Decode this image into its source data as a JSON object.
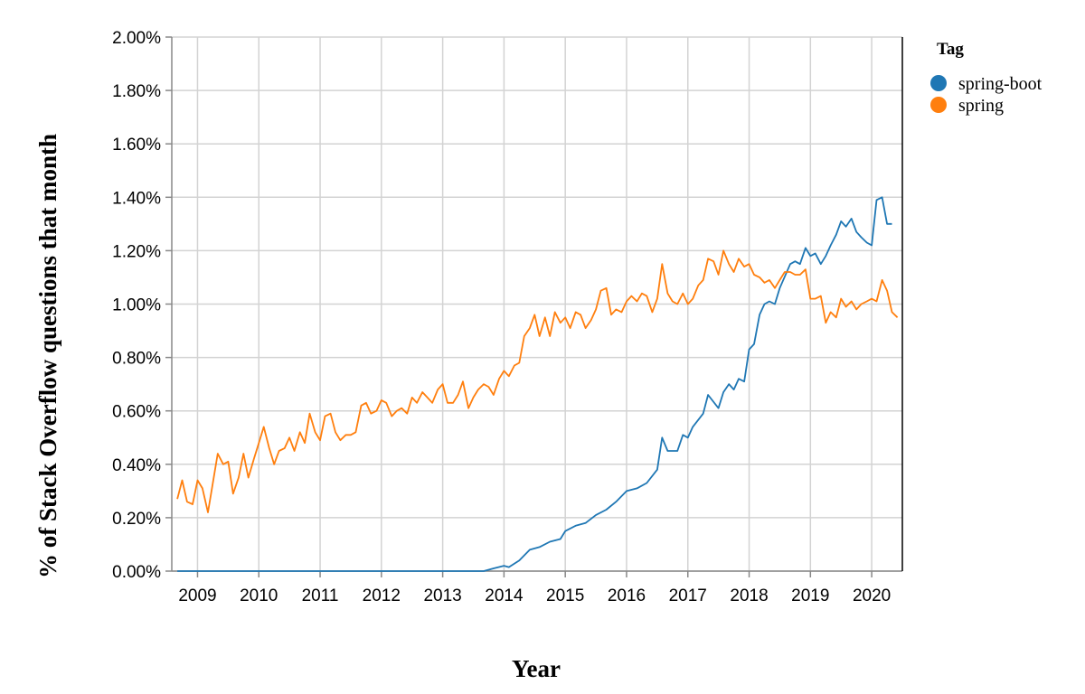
{
  "chart_data": {
    "type": "line",
    "xlabel": "Year",
    "ylabel": "% of Stack Overflow questions that month",
    "xlim": [
      2008.58,
      2020.5
    ],
    "ylim": [
      0,
      2.0
    ],
    "y_ticks": [
      "0.00%",
      "0.20%",
      "0.40%",
      "0.60%",
      "0.80%",
      "1.00%",
      "1.20%",
      "1.40%",
      "1.60%",
      "1.80%",
      "2.00%"
    ],
    "x_ticks": [
      "2009",
      "2010",
      "2011",
      "2012",
      "2013",
      "2014",
      "2015",
      "2016",
      "2017",
      "2018",
      "2019",
      "2020"
    ],
    "grid": true,
    "legend": {
      "title": "Tag",
      "placement": "top-right",
      "entries": [
        "spring-boot",
        "spring"
      ]
    },
    "series": [
      {
        "name": "spring-boot",
        "color": "#1f77b4",
        "points": [
          [
            2008.67,
            0.0
          ],
          [
            2009.0,
            0.0
          ],
          [
            2010.0,
            0.0
          ],
          [
            2011.0,
            0.0
          ],
          [
            2012.0,
            0.0
          ],
          [
            2013.0,
            0.0
          ],
          [
            2013.5,
            0.0
          ],
          [
            2013.67,
            0.0
          ],
          [
            2013.83,
            0.01
          ],
          [
            2014.0,
            0.02
          ],
          [
            2014.08,
            0.015
          ],
          [
            2014.25,
            0.04
          ],
          [
            2014.42,
            0.08
          ],
          [
            2014.58,
            0.09
          ],
          [
            2014.75,
            0.11
          ],
          [
            2014.92,
            0.12
          ],
          [
            2015.0,
            0.15
          ],
          [
            2015.17,
            0.17
          ],
          [
            2015.33,
            0.18
          ],
          [
            2015.5,
            0.21
          ],
          [
            2015.67,
            0.23
          ],
          [
            2015.83,
            0.26
          ],
          [
            2016.0,
            0.3
          ],
          [
            2016.17,
            0.31
          ],
          [
            2016.33,
            0.33
          ],
          [
            2016.5,
            0.38
          ],
          [
            2016.58,
            0.5
          ],
          [
            2016.67,
            0.45
          ],
          [
            2016.83,
            0.45
          ],
          [
            2016.92,
            0.51
          ],
          [
            2017.0,
            0.5
          ],
          [
            2017.08,
            0.54
          ],
          [
            2017.25,
            0.59
          ],
          [
            2017.33,
            0.66
          ],
          [
            2017.5,
            0.61
          ],
          [
            2017.58,
            0.67
          ],
          [
            2017.67,
            0.7
          ],
          [
            2017.75,
            0.68
          ],
          [
            2017.83,
            0.72
          ],
          [
            2017.92,
            0.71
          ],
          [
            2018.0,
            0.83
          ],
          [
            2018.08,
            0.85
          ],
          [
            2018.17,
            0.96
          ],
          [
            2018.25,
            1.0
          ],
          [
            2018.33,
            1.01
          ],
          [
            2018.42,
            1.0
          ],
          [
            2018.5,
            1.06
          ],
          [
            2018.67,
            1.15
          ],
          [
            2018.75,
            1.16
          ],
          [
            2018.83,
            1.15
          ],
          [
            2018.92,
            1.21
          ],
          [
            2019.0,
            1.18
          ],
          [
            2019.08,
            1.19
          ],
          [
            2019.17,
            1.15
          ],
          [
            2019.25,
            1.18
          ],
          [
            2019.33,
            1.22
          ],
          [
            2019.42,
            1.26
          ],
          [
            2019.5,
            1.31
          ],
          [
            2019.58,
            1.29
          ],
          [
            2019.67,
            1.32
          ],
          [
            2019.75,
            1.27
          ],
          [
            2019.83,
            1.25
          ],
          [
            2019.92,
            1.23
          ],
          [
            2020.0,
            1.22
          ],
          [
            2020.08,
            1.39
          ],
          [
            2020.17,
            1.4
          ],
          [
            2020.25,
            1.3
          ],
          [
            2020.33,
            1.3
          ]
        ]
      },
      {
        "name": "spring",
        "color": "#ff7f0e",
        "points": [
          [
            2008.67,
            0.27
          ],
          [
            2008.75,
            0.34
          ],
          [
            2008.83,
            0.26
          ],
          [
            2008.92,
            0.25
          ],
          [
            2009.0,
            0.34
          ],
          [
            2009.08,
            0.31
          ],
          [
            2009.17,
            0.22
          ],
          [
            2009.25,
            0.33
          ],
          [
            2009.33,
            0.44
          ],
          [
            2009.42,
            0.4
          ],
          [
            2009.5,
            0.41
          ],
          [
            2009.58,
            0.29
          ],
          [
            2009.67,
            0.35
          ],
          [
            2009.75,
            0.44
          ],
          [
            2009.83,
            0.35
          ],
          [
            2009.92,
            0.42
          ],
          [
            2010.0,
            0.48
          ],
          [
            2010.08,
            0.54
          ],
          [
            2010.17,
            0.46
          ],
          [
            2010.25,
            0.4
          ],
          [
            2010.33,
            0.45
          ],
          [
            2010.42,
            0.46
          ],
          [
            2010.5,
            0.5
          ],
          [
            2010.58,
            0.45
          ],
          [
            2010.67,
            0.52
          ],
          [
            2010.75,
            0.48
          ],
          [
            2010.83,
            0.59
          ],
          [
            2010.92,
            0.52
          ],
          [
            2011.0,
            0.49
          ],
          [
            2011.08,
            0.58
          ],
          [
            2011.17,
            0.59
          ],
          [
            2011.25,
            0.52
          ],
          [
            2011.33,
            0.49
          ],
          [
            2011.42,
            0.51
          ],
          [
            2011.5,
            0.51
          ],
          [
            2011.58,
            0.52
          ],
          [
            2011.67,
            0.62
          ],
          [
            2011.75,
            0.63
          ],
          [
            2011.83,
            0.59
          ],
          [
            2011.92,
            0.6
          ],
          [
            2012.0,
            0.64
          ],
          [
            2012.08,
            0.63
          ],
          [
            2012.17,
            0.58
          ],
          [
            2012.25,
            0.6
          ],
          [
            2012.33,
            0.61
          ],
          [
            2012.42,
            0.59
          ],
          [
            2012.5,
            0.65
          ],
          [
            2012.58,
            0.63
          ],
          [
            2012.67,
            0.67
          ],
          [
            2012.75,
            0.65
          ],
          [
            2012.83,
            0.63
          ],
          [
            2012.92,
            0.68
          ],
          [
            2013.0,
            0.7
          ],
          [
            2013.08,
            0.63
          ],
          [
            2013.17,
            0.63
          ],
          [
            2013.25,
            0.66
          ],
          [
            2013.33,
            0.71
          ],
          [
            2013.42,
            0.61
          ],
          [
            2013.5,
            0.65
          ],
          [
            2013.58,
            0.68
          ],
          [
            2013.67,
            0.7
          ],
          [
            2013.75,
            0.69
          ],
          [
            2013.83,
            0.66
          ],
          [
            2013.92,
            0.72
          ],
          [
            2014.0,
            0.75
          ],
          [
            2014.08,
            0.73
          ],
          [
            2014.17,
            0.77
          ],
          [
            2014.25,
            0.78
          ],
          [
            2014.33,
            0.88
          ],
          [
            2014.42,
            0.91
          ],
          [
            2014.5,
            0.96
          ],
          [
            2014.58,
            0.88
          ],
          [
            2014.67,
            0.95
          ],
          [
            2014.75,
            0.88
          ],
          [
            2014.83,
            0.97
          ],
          [
            2014.92,
            0.93
          ],
          [
            2015.0,
            0.95
          ],
          [
            2015.08,
            0.91
          ],
          [
            2015.17,
            0.97
          ],
          [
            2015.25,
            0.96
          ],
          [
            2015.33,
            0.91
          ],
          [
            2015.42,
            0.94
          ],
          [
            2015.5,
            0.98
          ],
          [
            2015.58,
            1.05
          ],
          [
            2015.67,
            1.06
          ],
          [
            2015.75,
            0.96
          ],
          [
            2015.83,
            0.98
          ],
          [
            2015.92,
            0.97
          ],
          [
            2016.0,
            1.01
          ],
          [
            2016.08,
            1.03
          ],
          [
            2016.17,
            1.01
          ],
          [
            2016.25,
            1.04
          ],
          [
            2016.33,
            1.03
          ],
          [
            2016.42,
            0.97
          ],
          [
            2016.5,
            1.02
          ],
          [
            2016.58,
            1.15
          ],
          [
            2016.67,
            1.04
          ],
          [
            2016.75,
            1.01
          ],
          [
            2016.83,
            1.0
          ],
          [
            2016.92,
            1.04
          ],
          [
            2017.0,
            1.0
          ],
          [
            2017.08,
            1.02
          ],
          [
            2017.17,
            1.07
          ],
          [
            2017.25,
            1.09
          ],
          [
            2017.33,
            1.17
          ],
          [
            2017.42,
            1.16
          ],
          [
            2017.5,
            1.11
          ],
          [
            2017.58,
            1.2
          ],
          [
            2017.67,
            1.15
          ],
          [
            2017.75,
            1.12
          ],
          [
            2017.83,
            1.17
          ],
          [
            2017.92,
            1.14
          ],
          [
            2018.0,
            1.15
          ],
          [
            2018.08,
            1.11
          ],
          [
            2018.17,
            1.1
          ],
          [
            2018.25,
            1.08
          ],
          [
            2018.33,
            1.09
          ],
          [
            2018.42,
            1.06
          ],
          [
            2018.5,
            1.09
          ],
          [
            2018.58,
            1.12
          ],
          [
            2018.67,
            1.12
          ],
          [
            2018.75,
            1.11
          ],
          [
            2018.83,
            1.11
          ],
          [
            2018.92,
            1.13
          ],
          [
            2019.0,
            1.02
          ],
          [
            2019.08,
            1.02
          ],
          [
            2019.17,
            1.03
          ],
          [
            2019.25,
            0.93
          ],
          [
            2019.33,
            0.97
          ],
          [
            2019.42,
            0.95
          ],
          [
            2019.5,
            1.02
          ],
          [
            2019.58,
            0.99
          ],
          [
            2019.67,
            1.01
          ],
          [
            2019.75,
            0.98
          ],
          [
            2019.83,
            1.0
          ],
          [
            2019.92,
            1.01
          ],
          [
            2020.0,
            1.02
          ],
          [
            2020.08,
            1.01
          ],
          [
            2020.17,
            1.09
          ],
          [
            2020.25,
            1.05
          ],
          [
            2020.33,
            0.97
          ],
          [
            2020.42,
            0.95
          ]
        ]
      }
    ]
  }
}
